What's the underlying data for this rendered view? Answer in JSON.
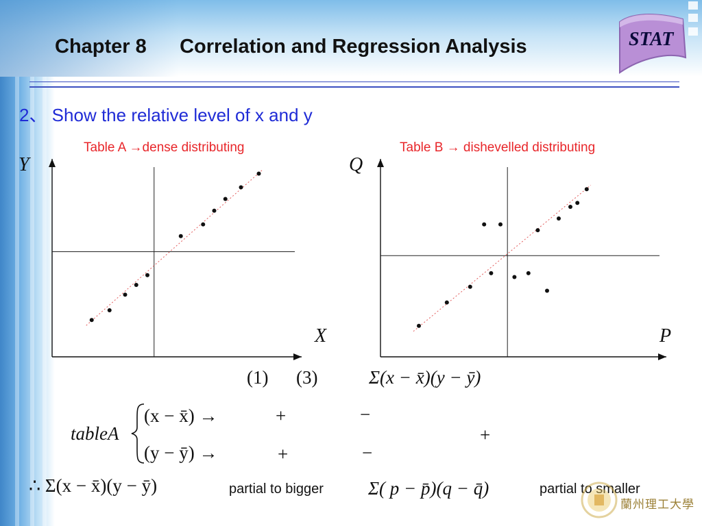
{
  "header": {
    "chapter": "Chapter 8",
    "title": "Correlation and Regression Analysis",
    "badge": "STAT"
  },
  "section": {
    "heading": "2、 Show the relative level of x and y"
  },
  "captions": {
    "table_a": "Table A →dense distributing",
    "table_b": "Table B → dishevelled distributing"
  },
  "axes": {
    "a": {
      "y_label": "Y",
      "x_label": "X"
    },
    "b": {
      "y_label": "Q",
      "x_label": "P"
    }
  },
  "chart_data": [
    {
      "type": "scatter",
      "title": "Table A →dense distributing",
      "xlabel": "X",
      "ylabel": "Y",
      "x": [
        1.5,
        2.3,
        3.0,
        3.5,
        4.0,
        5.5,
        6.5,
        7.0,
        7.5,
        8.2,
        9.0
      ],
      "y": [
        1.5,
        2.0,
        2.8,
        3.3,
        3.8,
        5.8,
        6.4,
        7.1,
        7.7,
        8.3,
        9.0
      ],
      "center": [
        4.3,
        5.0
      ],
      "trend": "dashed",
      "grid": false
    },
    {
      "type": "scatter",
      "title": "Table B → dishevelled distributing",
      "xlabel": "P",
      "ylabel": "Q",
      "x": [
        1.5,
        2.7,
        3.7,
        4.6,
        4.3,
        5.0,
        5.6,
        6.2,
        6.6,
        7.0,
        7.5,
        8.0,
        8.3,
        8.7
      ],
      "y": [
        1.2,
        2.4,
        3.2,
        3.9,
        6.4,
        6.4,
        3.7,
        3.9,
        6.1,
        3.0,
        6.7,
        7.3,
        7.5,
        8.2
      ],
      "center": [
        5.3,
        4.8
      ],
      "trend": "dashed",
      "grid": false
    }
  ],
  "formulas": {
    "labels": "(1)      (3)",
    "cov_sum": "Σ(x − x̄)(y − ȳ)",
    "table_name": "tableA",
    "row1_expr": "(x − x̄) →",
    "row1_sign1": "+",
    "row1_sign2": "−",
    "middle_sign": "+",
    "row2_expr": "(y − ȳ) →",
    "row2_sign1": "+",
    "row2_sign2": "−",
    "conclusion": "∴ Σ(x − x̄)(y − ȳ)",
    "pq_sum": "Σ( p − p̄)(q − q̄)"
  },
  "notes": {
    "bigger": "partial to bigger",
    "smaller": "partial to smaller"
  },
  "footer": {
    "university": "蘭州理工大學"
  },
  "colors": {
    "heading": "#1f2bd6",
    "caption": "#e8262a",
    "badge": "#b98fd6",
    "rule": "#3b4fc0"
  }
}
